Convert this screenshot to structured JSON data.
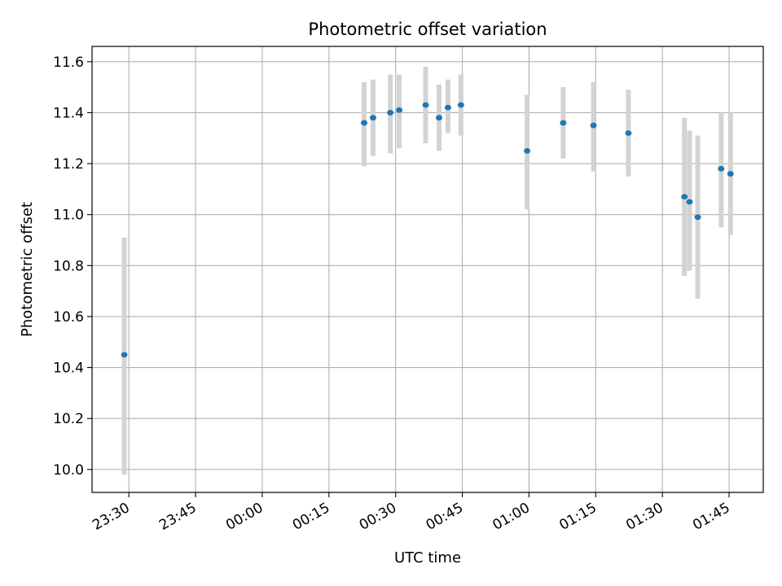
{
  "chart_data": {
    "type": "scatter",
    "title": "Photometric offset variation",
    "xlabel": "UTC time",
    "ylabel": "Photometric offset",
    "x_ticks": [
      "23:30",
      "23:45",
      "00:00",
      "00:15",
      "00:30",
      "00:45",
      "01:00",
      "01:15",
      "01:30",
      "01:45"
    ],
    "y_ticks": [
      "10.0",
      "10.2",
      "10.4",
      "10.6",
      "10.8",
      "11.0",
      "11.2",
      "11.4",
      "11.6"
    ],
    "ylim": [
      9.91,
      11.66
    ],
    "xlim": [
      "23:21:43",
      "01:52:41"
    ],
    "grid": true,
    "colors": {
      "point": "#1f77b4",
      "errorbar": "#d3d3d3",
      "grid": "#b0b0b0"
    },
    "points": [
      {
        "time": "23:28:58",
        "y": 10.45,
        "err_low": 9.98,
        "err_high": 10.91
      },
      {
        "time": "00:22:55",
        "y": 11.36,
        "err_low": 11.19,
        "err_high": 11.52
      },
      {
        "time": "00:24:55",
        "y": 11.38,
        "err_low": 11.23,
        "err_high": 11.53
      },
      {
        "time": "00:28:48",
        "y": 11.4,
        "err_low": 11.24,
        "err_high": 11.55
      },
      {
        "time": "00:30:48",
        "y": 11.41,
        "err_low": 11.26,
        "err_high": 11.55
      },
      {
        "time": "00:36:45",
        "y": 11.43,
        "err_low": 11.28,
        "err_high": 11.58
      },
      {
        "time": "00:39:46",
        "y": 11.38,
        "err_low": 11.25,
        "err_high": 11.51
      },
      {
        "time": "00:41:46",
        "y": 11.42,
        "err_low": 11.32,
        "err_high": 11.53
      },
      {
        "time": "00:44:41",
        "y": 11.43,
        "err_low": 11.31,
        "err_high": 11.55
      },
      {
        "time": "00:59:34",
        "y": 11.25,
        "err_low": 11.02,
        "err_high": 11.47
      },
      {
        "time": "01:07:41",
        "y": 11.36,
        "err_low": 11.22,
        "err_high": 11.5
      },
      {
        "time": "01:14:30",
        "y": 11.35,
        "err_low": 11.17,
        "err_high": 11.52
      },
      {
        "time": "01:22:21",
        "y": 11.32,
        "err_low": 11.15,
        "err_high": 11.49
      },
      {
        "time": "01:34:57",
        "y": 11.07,
        "err_low": 10.76,
        "err_high": 11.38
      },
      {
        "time": "01:36:06",
        "y": 11.05,
        "err_low": 10.78,
        "err_high": 11.33
      },
      {
        "time": "01:37:57",
        "y": 10.99,
        "err_low": 10.67,
        "err_high": 11.31
      },
      {
        "time": "01:43:13",
        "y": 11.18,
        "err_low": 10.95,
        "err_high": 11.4
      },
      {
        "time": "01:45:19",
        "y": 11.16,
        "err_low": 10.92,
        "err_high": 11.4
      }
    ]
  }
}
